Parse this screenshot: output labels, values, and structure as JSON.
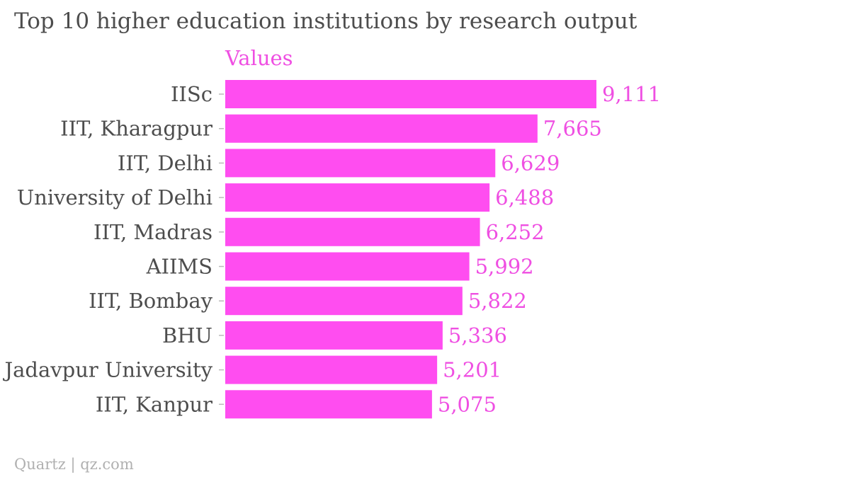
{
  "page": {
    "title": "Top 10 higher education institutions by research output",
    "source": "Quartz | qz.com"
  },
  "colors": {
    "bar": "#ff4df0",
    "value_label": "#ef4fe2",
    "series_label": "#ef4fe2",
    "category_label": "#4d4d4d",
    "axis": "#bbbbbb"
  },
  "chart_data": {
    "type": "bar",
    "orientation": "horizontal",
    "title": "Top 10 higher education institutions by research output",
    "xlabel": "",
    "ylabel": "",
    "categories": [
      "IISc",
      "IIT, Kharagpur",
      "IIT, Delhi",
      "University of Delhi",
      "IIT, Madras",
      "AIIMS",
      "IIT, Bombay",
      "BHU",
      "Jadavpur University",
      "IIT, Kanpur"
    ],
    "series": [
      {
        "name": "Values",
        "values": [
          9111,
          7665,
          6629,
          6488,
          6252,
          5992,
          5822,
          5336,
          5201,
          5075
        ],
        "labels": [
          "9,111",
          "7,665",
          "6,629",
          "6,488",
          "6,252",
          "5,992",
          "5,822",
          "5,336",
          "5,201",
          "5,075"
        ]
      }
    ],
    "xlim": [
      0,
      9111
    ],
    "grid": false,
    "legend": "top-left"
  }
}
